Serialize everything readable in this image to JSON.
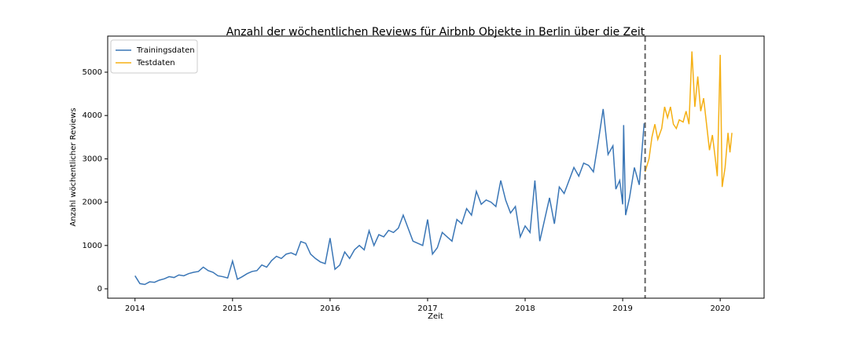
{
  "chart_data": {
    "type": "line",
    "title": "Anzahl der wöchentlichen Reviews für Airbnb Objekte in Berlin über die Zeit",
    "x_label": "Zeit",
    "y_label": "Anzahl wöchentlicher Reviews",
    "xlim": [
      2013.72,
      2020.45
    ],
    "xticks": [
      2014,
      2015,
      2016,
      2017,
      2018,
      2019,
      2020
    ],
    "ylim": [
      -217,
      5833
    ],
    "yticks": [
      0,
      1000,
      2000,
      3000,
      4000,
      5000
    ],
    "grid": false,
    "legend": "upper left",
    "vline": {
      "x": 2019.23,
      "color": "#666666",
      "dashed": true
    },
    "series": [
      {
        "name": "Trainingsdaten",
        "color": "#3a76b6",
        "x": [
          2014.0,
          2014.05,
          2014.1,
          2014.15,
          2014.2,
          2014.25,
          2014.3,
          2014.35,
          2014.4,
          2014.45,
          2014.5,
          2014.55,
          2014.6,
          2014.65,
          2014.7,
          2014.75,
          2014.8,
          2014.85,
          2014.9,
          2014.95,
          2015.0,
          2015.05,
          2015.1,
          2015.15,
          2015.2,
          2015.25,
          2015.3,
          2015.35,
          2015.4,
          2015.45,
          2015.5,
          2015.55,
          2015.6,
          2015.65,
          2015.7,
          2015.75,
          2015.8,
          2015.85,
          2015.9,
          2015.95,
          2016.0,
          2016.05,
          2016.1,
          2016.15,
          2016.2,
          2016.25,
          2016.3,
          2016.35,
          2016.4,
          2016.45,
          2016.5,
          2016.55,
          2016.6,
          2016.65,
          2016.7,
          2016.75,
          2016.8,
          2016.85,
          2016.9,
          2016.95,
          2017.0,
          2017.05,
          2017.1,
          2017.15,
          2017.2,
          2017.25,
          2017.3,
          2017.35,
          2017.4,
          2017.45,
          2017.5,
          2017.55,
          2017.6,
          2017.65,
          2017.7,
          2017.75,
          2017.8,
          2017.85,
          2017.9,
          2017.95,
          2018.0,
          2018.05,
          2018.1,
          2018.15,
          2018.2,
          2018.25,
          2018.3,
          2018.35,
          2018.4,
          2018.45,
          2018.5,
          2018.55,
          2018.6,
          2018.65,
          2018.7,
          2018.75,
          2018.8,
          2018.85,
          2018.9,
          2018.93,
          2018.97,
          2019.0,
          2019.01,
          2019.03,
          2019.07,
          2019.12,
          2019.17,
          2019.22
        ],
        "values": [
          300,
          120,
          100,
          160,
          150,
          200,
          230,
          280,
          260,
          320,
          300,
          350,
          380,
          400,
          500,
          420,
          380,
          300,
          280,
          250,
          640,
          220,
          280,
          350,
          400,
          420,
          550,
          500,
          650,
          750,
          700,
          800,
          830,
          780,
          1090,
          1050,
          800,
          700,
          620,
          580,
          1170,
          450,
          550,
          850,
          700,
          900,
          1000,
          900,
          1340,
          1000,
          1250,
          1200,
          1350,
          1300,
          1400,
          1700,
          1400,
          1100,
          1050,
          1000,
          1600,
          800,
          950,
          1300,
          1200,
          1100,
          1600,
          1500,
          1850,
          1700,
          2250,
          1950,
          2050,
          2000,
          1900,
          2500,
          2050,
          1750,
          1900,
          1200,
          1450,
          1300,
          2500,
          1100,
          1600,
          2100,
          1500,
          2350,
          2200,
          2500,
          2800,
          2600,
          2900,
          2850,
          2700,
          3400,
          4150,
          3100,
          3300,
          2300,
          2500,
          1950,
          3780,
          1700,
          2100,
          2800,
          2400,
          3820
        ]
      },
      {
        "name": "Testdaten",
        "color": "#f5b014",
        "x": [
          2019.23,
          2019.27,
          2019.3,
          2019.33,
          2019.36,
          2019.4,
          2019.43,
          2019.46,
          2019.49,
          2019.52,
          2019.55,
          2019.58,
          2019.62,
          2019.65,
          2019.68,
          2019.71,
          2019.74,
          2019.77,
          2019.8,
          2019.83,
          2019.86,
          2019.89,
          2019.92,
          2019.95,
          2019.97,
          2020.0,
          2020.02,
          2020.05,
          2020.08,
          2020.1,
          2020.12
        ],
        "values": [
          2700,
          3000,
          3500,
          3800,
          3450,
          3700,
          4200,
          3950,
          4200,
          3800,
          3700,
          3900,
          3850,
          4100,
          3800,
          5480,
          4200,
          4900,
          4100,
          4400,
          3800,
          3200,
          3550,
          3000,
          2600,
          5400,
          2350,
          2800,
          3600,
          3150,
          3600
        ]
      }
    ]
  }
}
